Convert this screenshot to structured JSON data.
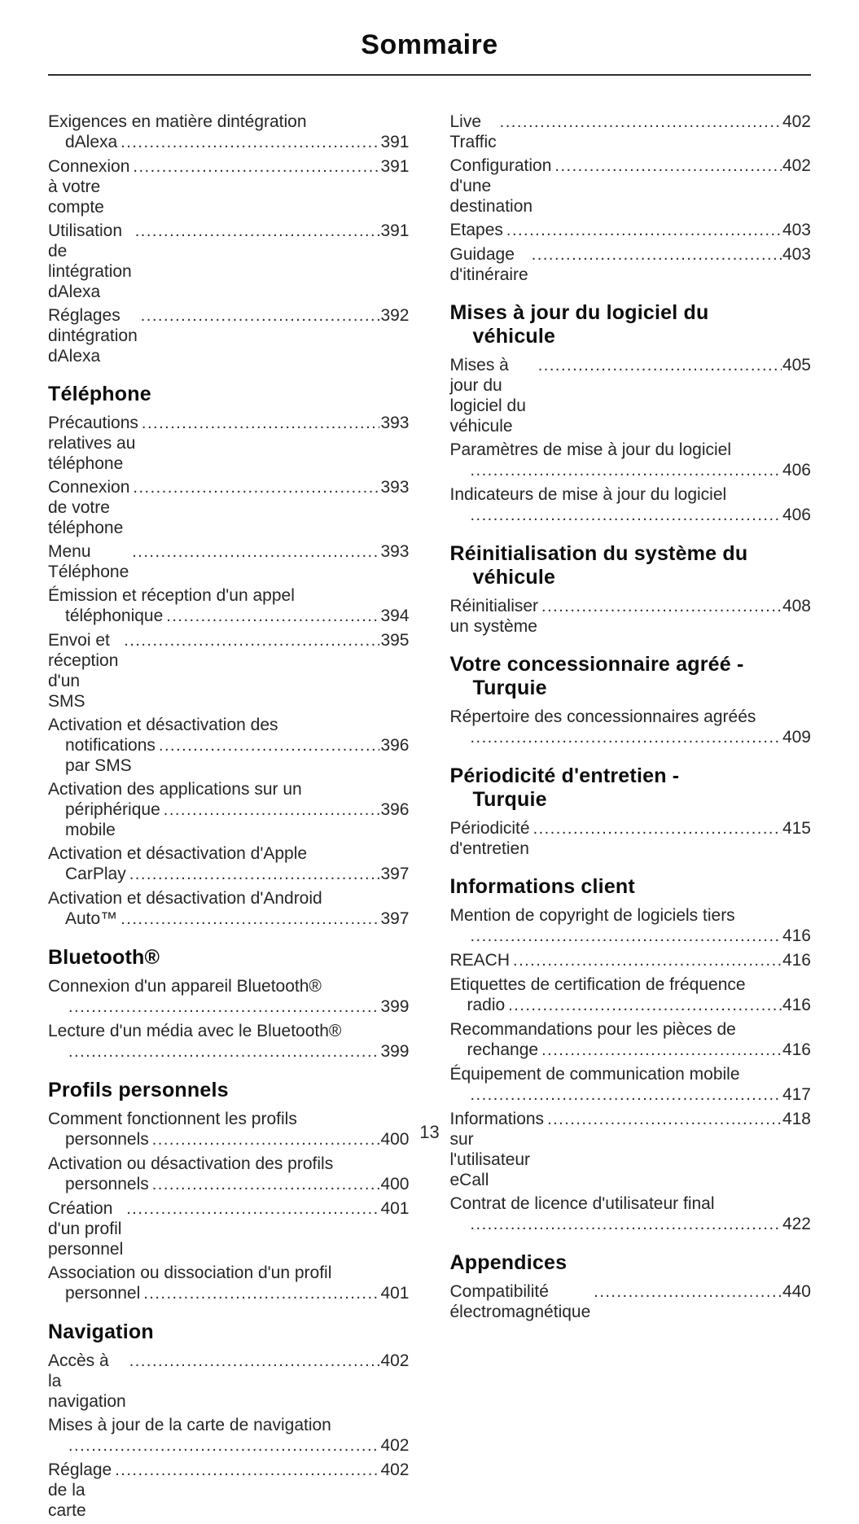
{
  "page": {
    "title": "Sommaire",
    "page_number": "13"
  },
  "toc": {
    "columns": [
      {
        "blocks": [
          {
            "heading": null,
            "entries": [
              {
                "lines": [
                  {
                    "text": "Exigences en matière dintégration"
                  },
                  {
                    "text": "dAlexa",
                    "page": "391"
                  }
                ]
              },
              {
                "lines": [
                  {
                    "text": "Connexion à votre compte",
                    "page": "391"
                  }
                ]
              },
              {
                "lines": [
                  {
                    "text": "Utilisation de lintégration dAlexa",
                    "page": "391"
                  }
                ]
              },
              {
                "lines": [
                  {
                    "text": "Réglages dintégration dAlexa",
                    "page": "392"
                  }
                ]
              }
            ]
          },
          {
            "heading": [
              "Téléphone"
            ],
            "entries": [
              {
                "lines": [
                  {
                    "text": "Précautions relatives au téléphone",
                    "page": "393"
                  }
                ]
              },
              {
                "lines": [
                  {
                    "text": "Connexion de votre téléphone",
                    "page": "393"
                  }
                ]
              },
              {
                "lines": [
                  {
                    "text": "Menu Téléphone",
                    "page": "393"
                  }
                ]
              },
              {
                "lines": [
                  {
                    "text": "Émission et réception d'un appel"
                  },
                  {
                    "text": "téléphonique",
                    "page": "394"
                  }
                ]
              },
              {
                "lines": [
                  {
                    "text": "Envoi et réception d'un SMS",
                    "page": "395"
                  }
                ]
              },
              {
                "lines": [
                  {
                    "text": "Activation et désactivation des"
                  },
                  {
                    "text": "notifications par SMS",
                    "page": "396"
                  }
                ]
              },
              {
                "lines": [
                  {
                    "text": "Activation des applications sur un"
                  },
                  {
                    "text": "périphérique mobile",
                    "page": "396"
                  }
                ]
              },
              {
                "lines": [
                  {
                    "text": "Activation et désactivation d'Apple"
                  },
                  {
                    "text": "CarPlay",
                    "page": "397"
                  }
                ]
              },
              {
                "lines": [
                  {
                    "text": "Activation et désactivation d'Android"
                  },
                  {
                    "text": "Auto™",
                    "page": "397"
                  }
                ]
              }
            ]
          },
          {
            "heading": [
              "Bluetooth®"
            ],
            "entries": [
              {
                "lines": [
                  {
                    "text": "Connexion d'un appareil Bluetooth®"
                  },
                  {
                    "text": "",
                    "page": "399"
                  }
                ]
              },
              {
                "lines": [
                  {
                    "text": "Lecture d'un média avec le Bluetooth®"
                  },
                  {
                    "text": "",
                    "page": "399"
                  }
                ]
              }
            ]
          },
          {
            "heading": [
              "Profils personnels"
            ],
            "entries": [
              {
                "lines": [
                  {
                    "text": "Comment fonctionnent les profils"
                  },
                  {
                    "text": "personnels",
                    "page": "400"
                  }
                ]
              },
              {
                "lines": [
                  {
                    "text": "Activation ou désactivation des profils"
                  },
                  {
                    "text": "personnels",
                    "page": "400"
                  }
                ]
              },
              {
                "lines": [
                  {
                    "text": "Création d'un profil personnel",
                    "page": "401"
                  }
                ]
              },
              {
                "lines": [
                  {
                    "text": "Association ou dissociation d'un profil"
                  },
                  {
                    "text": "personnel",
                    "page": "401"
                  }
                ]
              }
            ]
          },
          {
            "heading": [
              "Navigation"
            ],
            "entries": [
              {
                "lines": [
                  {
                    "text": "Accès à la navigation",
                    "page": "402"
                  }
                ]
              },
              {
                "lines": [
                  {
                    "text": "Mises à jour de la carte de navigation"
                  },
                  {
                    "text": "",
                    "page": "402"
                  }
                ]
              },
              {
                "lines": [
                  {
                    "text": "Réglage de la carte",
                    "page": "402"
                  }
                ]
              }
            ]
          }
        ]
      },
      {
        "blocks": [
          {
            "heading": null,
            "entries": [
              {
                "lines": [
                  {
                    "text": "Live Traffic",
                    "page": "402"
                  }
                ]
              },
              {
                "lines": [
                  {
                    "text": "Configuration d'une destination",
                    "page": "402"
                  }
                ]
              },
              {
                "lines": [
                  {
                    "text": "Etapes",
                    "page": "403"
                  }
                ]
              },
              {
                "lines": [
                  {
                    "text": "Guidage d'itinéraire",
                    "page": "403"
                  }
                ]
              }
            ]
          },
          {
            "heading": [
              "Mises à jour du logiciel du",
              "véhicule"
            ],
            "entries": [
              {
                "lines": [
                  {
                    "text": "Mises à jour du logiciel du véhicule",
                    "page": "405"
                  }
                ]
              },
              {
                "lines": [
                  {
                    "text": "Paramètres de mise à jour du logiciel"
                  },
                  {
                    "text": "",
                    "page": "406"
                  }
                ]
              },
              {
                "lines": [
                  {
                    "text": "Indicateurs de mise à jour du logiciel"
                  },
                  {
                    "text": "",
                    "page": "406"
                  }
                ]
              }
            ]
          },
          {
            "heading": [
              "Réinitialisation du système du",
              "véhicule"
            ],
            "entries": [
              {
                "lines": [
                  {
                    "text": "Réinitialiser un système",
                    "page": "408"
                  }
                ]
              }
            ]
          },
          {
            "heading": [
              "Votre concessionnaire agréé -",
              "Turquie"
            ],
            "entries": [
              {
                "lines": [
                  {
                    "text": "Répertoire des concessionnaires agréés"
                  },
                  {
                    "text": "",
                    "page": "409"
                  }
                ]
              }
            ]
          },
          {
            "heading": [
              "Périodicité d'entretien -",
              "Turquie"
            ],
            "entries": [
              {
                "lines": [
                  {
                    "text": "Périodicité d'entretien",
                    "page": "415"
                  }
                ]
              }
            ]
          },
          {
            "heading": [
              "Informations client"
            ],
            "entries": [
              {
                "lines": [
                  {
                    "text": "Mention de copyright de logiciels tiers"
                  },
                  {
                    "text": "",
                    "page": "416"
                  }
                ]
              },
              {
                "lines": [
                  {
                    "text": "REACH",
                    "page": "416"
                  }
                ]
              },
              {
                "lines": [
                  {
                    "text": "Etiquettes de certification de fréquence"
                  },
                  {
                    "text": "radio",
                    "page": "416"
                  }
                ]
              },
              {
                "lines": [
                  {
                    "text": "Recommandations pour les pièces de"
                  },
                  {
                    "text": "rechange",
                    "page": "416"
                  }
                ]
              },
              {
                "lines": [
                  {
                    "text": "Équipement de communication mobile"
                  },
                  {
                    "text": "",
                    "page": "417"
                  }
                ]
              },
              {
                "lines": [
                  {
                    "text": "Informations sur l'utilisateur eCall",
                    "page": "418"
                  }
                ]
              },
              {
                "lines": [
                  {
                    "text": "Contrat de licence d'utilisateur final"
                  },
                  {
                    "text": "",
                    "page": "422"
                  }
                ]
              }
            ]
          },
          {
            "heading": [
              "Appendices"
            ],
            "entries": [
              {
                "lines": [
                  {
                    "text": "Compatibilité électromagnétique",
                    "page": "440"
                  }
                ]
              }
            ]
          }
        ]
      }
    ]
  }
}
